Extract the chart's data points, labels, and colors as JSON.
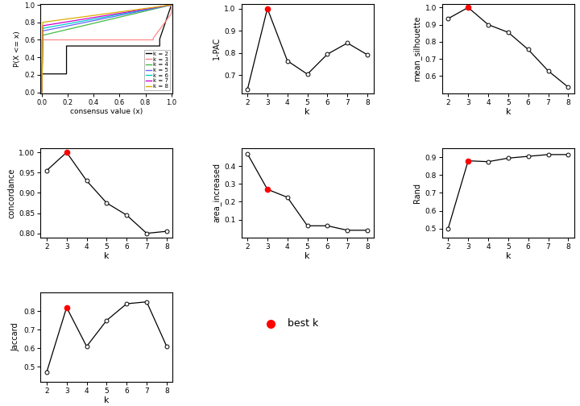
{
  "k": [
    2,
    3,
    4,
    5,
    6,
    7,
    8
  ],
  "one_pac": [
    0.635,
    1.0,
    0.765,
    0.705,
    0.795,
    0.845,
    0.792
  ],
  "mean_silhouette": [
    0.935,
    1.0,
    0.9,
    0.855,
    0.755,
    0.63,
    0.535
  ],
  "concordance": [
    0.955,
    1.0,
    0.93,
    0.875,
    0.845,
    0.8,
    0.805
  ],
  "area_increased": [
    0.47,
    0.27,
    0.225,
    0.065,
    0.065,
    0.04,
    0.04
  ],
  "rand": [
    0.5,
    0.88,
    0.875,
    0.895,
    0.905,
    0.915,
    0.915
  ],
  "jaccard": [
    0.47,
    0.82,
    0.61,
    0.75,
    0.84,
    0.85,
    0.61
  ],
  "best_k": 3,
  "ecdf_colors": [
    "#000000",
    "#ff8888",
    "#44bb44",
    "#6666ff",
    "#00cccc",
    "#cc00cc",
    "#ddaa00"
  ],
  "ecdf_labels": [
    "k = 2",
    "k = 3",
    "k = 4",
    "k = 5",
    "k = 6",
    "k = 7",
    "k = 8"
  ]
}
